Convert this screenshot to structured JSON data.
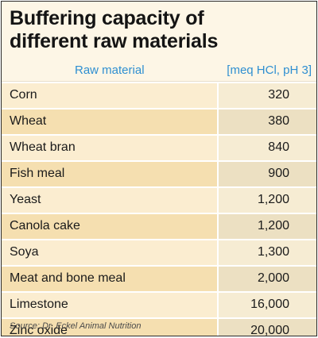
{
  "title_line1": "Buffering capacity of",
  "title_line2": "different raw materials",
  "columns": {
    "material": "Raw material",
    "value": "[meq HCl, pH 3]"
  },
  "rows": [
    {
      "material": "Corn",
      "value": "320"
    },
    {
      "material": "Wheat",
      "value": "380"
    },
    {
      "material": "Wheat bran",
      "value": "840"
    },
    {
      "material": "Fish meal",
      "value": "900"
    },
    {
      "material": "Yeast",
      "value": "1,200"
    },
    {
      "material": "Canola cake",
      "value": "1,200"
    },
    {
      "material": "Soya",
      "value": "1,300"
    },
    {
      "material": "Meat and bone meal",
      "value": "2,000"
    },
    {
      "material": "Limestone",
      "value": "16,000"
    },
    {
      "material": "Zinc oxide",
      "value": "20,000"
    }
  ],
  "source": "Source: Dr. Eckel Animal Nutrition",
  "colors": {
    "header_text": "#2f8fd1",
    "background": "#fdf6e6",
    "row_light": "#fbedd0",
    "row_dark": "#f5dfb0"
  }
}
